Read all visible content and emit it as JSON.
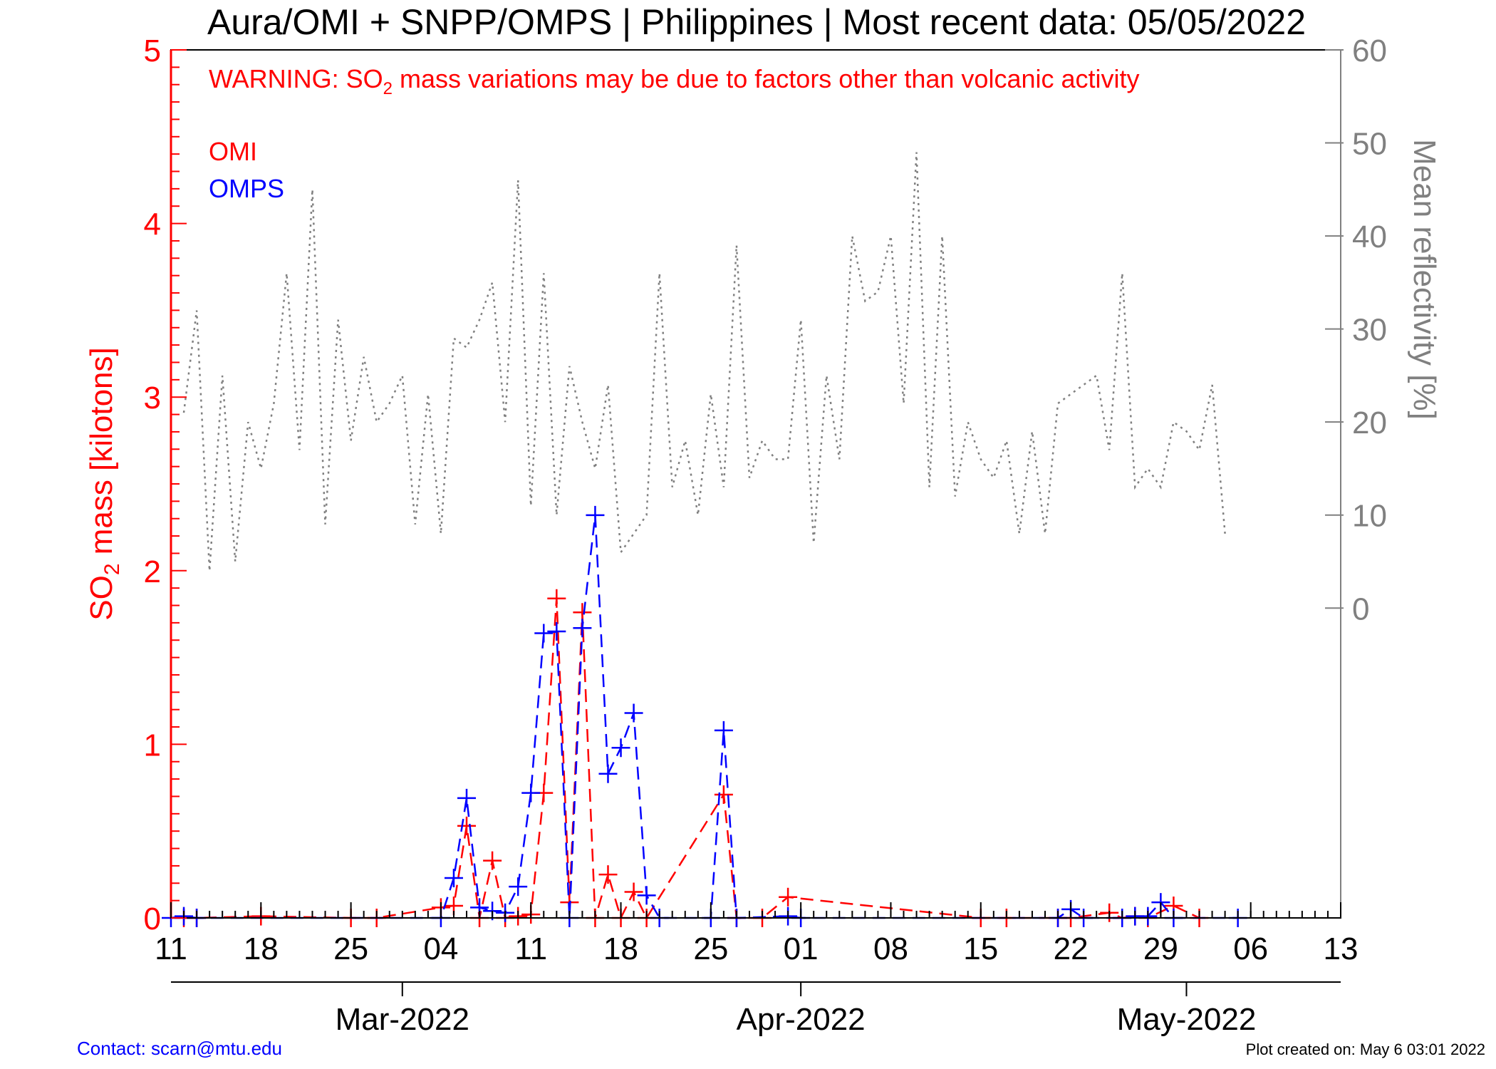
{
  "title": "Aura/OMI + SNPP/OMPS | Philippines | Most recent data: 05/05/2022",
  "warning": {
    "prefix": "WARNING: SO",
    "sub": "2",
    "suffix": " mass variations may be due to factors other than volcanic activity"
  },
  "legend": [
    {
      "label": "OMI",
      "color": "#ff0000"
    },
    {
      "label": "OMPS",
      "color": "#0000ff"
    }
  ],
  "left_axis": {
    "prefix": "SO",
    "sub": "2",
    "suffix": " mass [kilotons]",
    "color": "#ff0000",
    "ticks": [
      "0",
      "1",
      "2",
      "3",
      "4",
      "5"
    ]
  },
  "right_axis": {
    "label": "Mean reflectivity [%]",
    "color": "#808080",
    "ticks": [
      "0",
      "10",
      "20",
      "30",
      "40",
      "50",
      "60"
    ]
  },
  "x_axis": {
    "day_ticks": [
      {
        "date": "2022-02-11",
        "label": "11"
      },
      {
        "date": "2022-02-18",
        "label": "18"
      },
      {
        "date": "2022-02-25",
        "label": "25"
      },
      {
        "date": "2022-03-04",
        "label": "04"
      },
      {
        "date": "2022-03-11",
        "label": "11"
      },
      {
        "date": "2022-03-18",
        "label": "18"
      },
      {
        "date": "2022-03-25",
        "label": "25"
      },
      {
        "date": "2022-04-01",
        "label": "01"
      },
      {
        "date": "2022-04-08",
        "label": "08"
      },
      {
        "date": "2022-04-15",
        "label": "15"
      },
      {
        "date": "2022-04-22",
        "label": "22"
      },
      {
        "date": "2022-04-29",
        "label": "29"
      },
      {
        "date": "2022-05-06",
        "label": "06"
      },
      {
        "date": "2022-05-13",
        "label": "13"
      }
    ],
    "months": [
      {
        "date": "2022-03-01",
        "label": "Mar-2022"
      },
      {
        "date": "2022-04-01",
        "label": "Apr-2022"
      },
      {
        "date": "2022-05-01",
        "label": "May-2022"
      }
    ]
  },
  "footer": {
    "contact": "Contact: scarn@mtu.edu",
    "created": "Plot created on: May  6 03:01 2022"
  },
  "chart_data": {
    "type": "line",
    "x_start": "2022-02-11",
    "x_end": "2022-05-13",
    "ylim_left": [
      0,
      5
    ],
    "ylim_right": [
      -33.3,
      60
    ],
    "series": [
      {
        "name": "OMI",
        "color": "#ff0000",
        "axis": "left",
        "style": "dashed",
        "marker": "+",
        "points": [
          [
            "2022-02-12",
            0
          ],
          [
            "2022-02-13",
            0
          ],
          [
            "2022-02-18",
            0.01
          ],
          [
            "2022-02-25",
            0
          ],
          [
            "2022-02-27",
            0
          ],
          [
            "2022-03-04",
            0.06
          ],
          [
            "2022-03-05",
            0.07
          ],
          [
            "2022-03-06",
            0.53
          ],
          [
            "2022-03-07",
            0
          ],
          [
            "2022-03-08",
            0.33
          ],
          [
            "2022-03-09",
            0
          ],
          [
            "2022-03-10",
            0.01
          ],
          [
            "2022-03-11",
            0.02
          ],
          [
            "2022-03-12",
            0.72
          ],
          [
            "2022-03-13",
            1.84
          ],
          [
            "2022-03-14",
            0.09
          ],
          [
            "2022-03-15",
            1.76
          ],
          [
            "2022-03-16",
            0
          ],
          [
            "2022-03-17",
            0.25
          ],
          [
            "2022-03-18",
            0
          ],
          [
            "2022-03-19",
            0.15
          ],
          [
            "2022-03-20",
            0
          ],
          [
            "2022-03-26",
            0.71
          ],
          [
            "2022-03-27",
            0
          ],
          [
            "2022-03-29",
            0
          ],
          [
            "2022-03-31",
            0.12
          ],
          [
            "2022-04-15",
            0
          ],
          [
            "2022-04-17",
            0
          ],
          [
            "2022-04-21",
            0
          ],
          [
            "2022-04-22",
            0
          ],
          [
            "2022-04-25",
            0.03
          ],
          [
            "2022-04-26",
            0
          ],
          [
            "2022-04-27",
            0.01
          ],
          [
            "2022-04-28",
            0
          ],
          [
            "2022-04-30",
            0.07
          ],
          [
            "2022-05-02",
            0
          ]
        ]
      },
      {
        "name": "OMPS",
        "color": "#0000ff",
        "axis": "left",
        "style": "dashed",
        "marker": "+",
        "points": [
          [
            "2022-02-11",
            0
          ],
          [
            "2022-02-12",
            0.01
          ],
          [
            "2022-02-13",
            0
          ],
          [
            "2022-03-04",
            0
          ],
          [
            "2022-03-05",
            0.23
          ],
          [
            "2022-03-06",
            0.69
          ],
          [
            "2022-03-07",
            0.06
          ],
          [
            "2022-03-08",
            0.04
          ],
          [
            "2022-03-09",
            0.03
          ],
          [
            "2022-03-10",
            0.18
          ],
          [
            "2022-03-11",
            0.72
          ],
          [
            "2022-03-12",
            1.64
          ],
          [
            "2022-03-13",
            1.65
          ],
          [
            "2022-03-14",
            0
          ],
          [
            "2022-03-15",
            1.67
          ],
          [
            "2022-03-16",
            2.32
          ],
          [
            "2022-03-17",
            0.83
          ],
          [
            "2022-03-18",
            0.98
          ],
          [
            "2022-03-19",
            1.18
          ],
          [
            "2022-03-20",
            0.13
          ],
          [
            "2022-03-21",
            0
          ],
          [
            "2022-03-25",
            0
          ],
          [
            "2022-03-26",
            1.08
          ],
          [
            "2022-03-27",
            0
          ],
          [
            "2022-03-31",
            0.01
          ],
          [
            "2022-04-01",
            0
          ],
          [
            "2022-04-21",
            0
          ],
          [
            "2022-04-22",
            0.05
          ],
          [
            "2022-04-23",
            0
          ],
          [
            "2022-04-26",
            0
          ],
          [
            "2022-04-27",
            0.01
          ],
          [
            "2022-04-28",
            0.01
          ],
          [
            "2022-04-29",
            0.09
          ],
          [
            "2022-04-30",
            0
          ],
          [
            "2022-05-05",
            0
          ]
        ]
      },
      {
        "name": "Mean reflectivity",
        "color": "#808080",
        "axis": "right",
        "style": "dotted",
        "points": [
          [
            "2022-02-12",
            21
          ],
          [
            "2022-02-13",
            32
          ],
          [
            "2022-02-14",
            4
          ],
          [
            "2022-02-15",
            25
          ],
          [
            "2022-02-16",
            5
          ],
          [
            "2022-02-17",
            20
          ],
          [
            "2022-02-18",
            15
          ],
          [
            "2022-02-19",
            22
          ],
          [
            "2022-02-20",
            36
          ],
          [
            "2022-02-21",
            17
          ],
          [
            "2022-02-22",
            45
          ],
          [
            "2022-02-23",
            9
          ],
          [
            "2022-02-24",
            31
          ],
          [
            "2022-02-25",
            18
          ],
          [
            "2022-02-26",
            27
          ],
          [
            "2022-02-27",
            20
          ],
          [
            "2022-02-28",
            22
          ],
          [
            "2022-03-01",
            25
          ],
          [
            "2022-03-02",
            9
          ],
          [
            "2022-03-03",
            23
          ],
          [
            "2022-03-04",
            8
          ],
          [
            "2022-03-05",
            29
          ],
          [
            "2022-03-06",
            28
          ],
          [
            "2022-03-07",
            31
          ],
          [
            "2022-03-08",
            35
          ],
          [
            "2022-03-09",
            20
          ],
          [
            "2022-03-10",
            46
          ],
          [
            "2022-03-11",
            11
          ],
          [
            "2022-03-12",
            36
          ],
          [
            "2022-03-13",
            10
          ],
          [
            "2022-03-14",
            26
          ],
          [
            "2022-03-15",
            20
          ],
          [
            "2022-03-16",
            15
          ],
          [
            "2022-03-17",
            24
          ],
          [
            "2022-03-18",
            6
          ],
          [
            "2022-03-19",
            8
          ],
          [
            "2022-03-20",
            10
          ],
          [
            "2022-03-21",
            36
          ],
          [
            "2022-03-22",
            13
          ],
          [
            "2022-03-23",
            18
          ],
          [
            "2022-03-24",
            10
          ],
          [
            "2022-03-25",
            23
          ],
          [
            "2022-03-26",
            13
          ],
          [
            "2022-03-27",
            39
          ],
          [
            "2022-03-28",
            14
          ],
          [
            "2022-03-29",
            18
          ],
          [
            "2022-03-30",
            16
          ],
          [
            "2022-03-31",
            16
          ],
          [
            "2022-04-01",
            31
          ],
          [
            "2022-04-02",
            7
          ],
          [
            "2022-04-03",
            25
          ],
          [
            "2022-04-04",
            16
          ],
          [
            "2022-04-05",
            40
          ],
          [
            "2022-04-06",
            33
          ],
          [
            "2022-04-07",
            34
          ],
          [
            "2022-04-08",
            40
          ],
          [
            "2022-04-09",
            22
          ],
          [
            "2022-04-10",
            49
          ],
          [
            "2022-04-11",
            13
          ],
          [
            "2022-04-12",
            40
          ],
          [
            "2022-04-13",
            12
          ],
          [
            "2022-04-14",
            20
          ],
          [
            "2022-04-15",
            16
          ],
          [
            "2022-04-16",
            14
          ],
          [
            "2022-04-17",
            18
          ],
          [
            "2022-04-18",
            8
          ],
          [
            "2022-04-19",
            19
          ],
          [
            "2022-04-20",
            8
          ],
          [
            "2022-04-21",
            22
          ],
          [
            "2022-04-22",
            23
          ],
          [
            "2022-04-23",
            24
          ],
          [
            "2022-04-24",
            25
          ],
          [
            "2022-04-25",
            17
          ],
          [
            "2022-04-26",
            36
          ],
          [
            "2022-04-27",
            13
          ],
          [
            "2022-04-28",
            15
          ],
          [
            "2022-04-29",
            13
          ],
          [
            "2022-04-30",
            20
          ],
          [
            "2022-05-01",
            19
          ],
          [
            "2022-05-02",
            17
          ],
          [
            "2022-05-03",
            24
          ],
          [
            "2022-05-04",
            8
          ]
        ]
      }
    ],
    "title": "Aura/OMI + SNPP/OMPS | Philippines | Most recent data: 05/05/2022",
    "ylabel_left": "SO2 mass [kilotons]",
    "ylabel_right": "Mean reflectivity [%]",
    "grid": false,
    "legend_position": "top-left"
  }
}
